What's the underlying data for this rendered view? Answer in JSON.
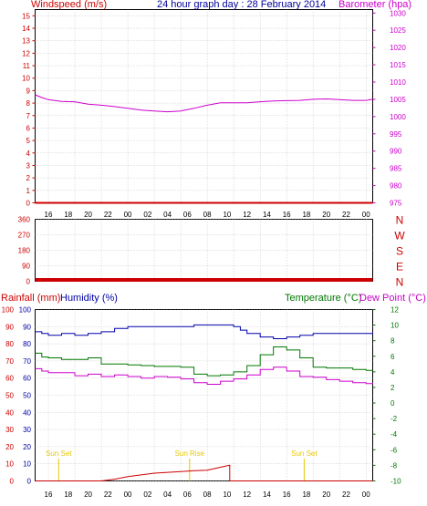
{
  "colors": {
    "wind": "#cc0000",
    "barometer": "#cc00cc",
    "direction": "#cc0000",
    "rain": "#cc0000",
    "humidity_axis": "#0000aa",
    "humidity": "#0000aa",
    "temperature": "#007700",
    "dewpoint": "#cc00cc",
    "title": "#000099",
    "grid": "#aaaaaa",
    "sun": "#e8c800",
    "frame": "#000000"
  },
  "time_ticks": [
    "16",
    "18",
    "20",
    "22",
    "00",
    "02",
    "04",
    "06",
    "08",
    "10",
    "12",
    "14",
    "16",
    "18",
    "20",
    "22",
    "00"
  ],
  "chart_data": [
    {
      "type": "line",
      "title": "24 hour graph day : 28 February 2014",
      "left_axis_label": "Windspeed (m/s)",
      "right_axis_label": "Barometer (hpa)",
      "left_ticks": [
        "0",
        "1",
        "2",
        "3",
        "4",
        "5",
        "6",
        "7",
        "8",
        "9",
        "10",
        "11",
        "12",
        "13",
        "14",
        "15"
      ],
      "right_ticks": [
        "975",
        "980",
        "985",
        "990",
        "995",
        "1000",
        "1005",
        "1010",
        "1015",
        "1020",
        "1025",
        "1030"
      ],
      "ylim_left": [
        0,
        15.5
      ],
      "ylim_right": [
        975,
        1031
      ],
      "xlim_hours": [
        0,
        25.5
      ],
      "series": [
        {
          "key": "wind",
          "axis": "left",
          "x": [
            0,
            25.5
          ],
          "values": [
            0,
            0
          ]
        },
        {
          "key": "barometer",
          "axis": "right",
          "x": [
            0,
            0.5,
            1,
            2,
            3,
            4,
            5,
            6,
            7,
            8,
            9,
            10,
            11,
            12,
            13,
            14,
            15,
            16,
            17,
            18,
            19,
            20,
            21,
            22,
            23,
            24,
            25,
            25.5
          ],
          "values": [
            1006.3,
            1005.5,
            1004.9,
            1004.4,
            1004.3,
            1003.6,
            1003.3,
            1002.9,
            1002.4,
            1001.9,
            1001.6,
            1001.4,
            1001.6,
            1002.4,
            1003.3,
            1004.0,
            1004.0,
            1004.0,
            1004.3,
            1004.5,
            1004.6,
            1004.7,
            1005.0,
            1005.1,
            1004.9,
            1004.7,
            1004.7,
            1005.0
          ]
        }
      ]
    },
    {
      "type": "line",
      "left_ticks": [
        "0",
        "90",
        "180",
        "270",
        "360"
      ],
      "right_ticks": [
        "N",
        "E",
        "S",
        "W",
        "N"
      ],
      "ylim": [
        0,
        360
      ],
      "series": [
        {
          "key": "direction",
          "x": [
            0,
            25.5
          ],
          "values": [
            0,
            0
          ]
        }
      ]
    },
    {
      "type": "line",
      "left_label_rain": "Rainfall (mm)",
      "left_label_humidity": "Humidity (%)",
      "right_label_temperature": "Temperature (°C)",
      "right_label_dewpoint": "Dew Point (°C)",
      "rain_ticks": [
        "0",
        "10",
        "20",
        "30",
        "40",
        "50",
        "60",
        "70",
        "80",
        "90",
        "100"
      ],
      "humidity_ticks": [
        "0",
        "10",
        "20",
        "30",
        "40",
        "50",
        "60",
        "70",
        "80",
        "90",
        "100"
      ],
      "temperature_ticks": [
        "-10",
        "-8",
        "-6",
        "-4",
        "-2",
        "0",
        "2",
        "4",
        "6",
        "8",
        "10",
        "12"
      ],
      "ylim_left": [
        0,
        100
      ],
      "ylim_right": [
        -10,
        12
      ],
      "annotations": [
        {
          "key": "sunset1",
          "label": "Sun Set",
          "hour": 2.3
        },
        {
          "key": "sunrise",
          "label": "Sun Rise",
          "hour": 15.1
        },
        {
          "key": "sunset2",
          "label": "Sun Set",
          "hour": 26.3
        }
      ],
      "series": [
        {
          "key": "humidity",
          "axis": "left",
          "x": [
            0,
            0.5,
            1,
            2,
            3,
            4,
            5,
            6,
            7,
            8,
            9,
            10,
            11,
            12,
            13,
            14,
            15,
            15.5,
            16,
            17,
            18,
            19,
            20,
            21,
            22,
            23,
            24,
            25,
            25.5
          ],
          "values": [
            87,
            86,
            85,
            86,
            85,
            86,
            87,
            89,
            90,
            90,
            90,
            90,
            90,
            91,
            91,
            91,
            90,
            88,
            86,
            84,
            83,
            84,
            85,
            86,
            86,
            86,
            86,
            86,
            87
          ]
        },
        {
          "key": "temperature",
          "axis": "right",
          "x": [
            0,
            0.5,
            1,
            2,
            3,
            4,
            5,
            6,
            7,
            8,
            9,
            10,
            11,
            12,
            13,
            14,
            15,
            16,
            17,
            18,
            19,
            20,
            21,
            22,
            23,
            24,
            25,
            25.5
          ],
          "values": [
            6.4,
            5.9,
            5.8,
            5.6,
            5.6,
            5.8,
            5.0,
            5.0,
            4.9,
            4.8,
            4.7,
            4.7,
            4.6,
            3.7,
            3.5,
            3.6,
            4.0,
            4.8,
            6.2,
            7.2,
            6.8,
            5.8,
            4.6,
            4.5,
            4.5,
            4.3,
            4.2,
            4.2
          ]
        },
        {
          "key": "dewpoint",
          "axis": "right",
          "x": [
            0,
            0.5,
            1,
            2,
            3,
            4,
            5,
            6,
            7,
            8,
            9,
            10,
            11,
            12,
            13,
            14,
            15,
            16,
            17,
            18,
            19,
            20,
            21,
            22,
            23,
            24,
            25,
            25.5
          ],
          "values": [
            4.4,
            4.1,
            3.9,
            3.9,
            3.5,
            3.7,
            3.4,
            3.6,
            3.4,
            3.2,
            3.4,
            3.3,
            3.1,
            2.6,
            2.4,
            2.8,
            3.1,
            3.6,
            4.3,
            4.6,
            4.1,
            3.4,
            3.3,
            3.0,
            2.8,
            2.6,
            2.5,
            2.6
          ]
        },
        {
          "key": "rain",
          "axis": "left",
          "x": [
            0,
            5,
            6,
            7,
            8,
            9,
            10,
            11,
            12,
            13,
            14,
            14.7,
            14.7,
            15.2,
            16,
            20,
            25.5
          ],
          "values": [
            0,
            0,
            1,
            2.5,
            3.5,
            4.5,
            5,
            5.5,
            6,
            6.2,
            8,
            9.2,
            0,
            0,
            0,
            0,
            0
          ]
        }
      ]
    }
  ]
}
